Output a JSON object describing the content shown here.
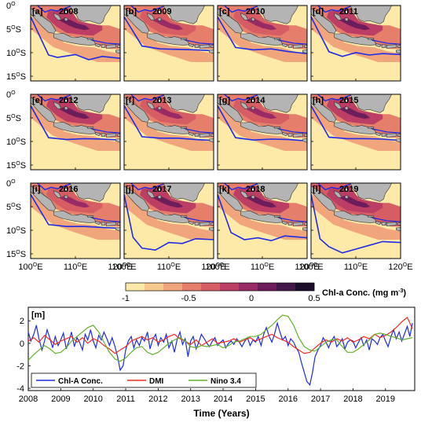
{
  "maps": {
    "y_ticks": [
      "0",
      "5",
      "10",
      "15"
    ],
    "lat_suffix": "S",
    "x_ticks": [
      "100",
      "110",
      "120"
    ],
    "lon_suffix": "E",
    "deg": "O",
    "panels": [
      {
        "label": "[a]",
        "year": "2008"
      },
      {
        "label": "[b]",
        "year": "2009"
      },
      {
        "label": "[c]",
        "year": "2010"
      },
      {
        "label": "[d]",
        "year": "2011"
      },
      {
        "label": "[e]",
        "year": "2012"
      },
      {
        "label": "[f]",
        "year": "2013"
      },
      {
        "label": "[g]",
        "year": "2014"
      },
      {
        "label": "[h]",
        "year": "2015"
      },
      {
        "label": "[i]",
        "year": "2016"
      },
      {
        "label": "[j]",
        "year": "2017"
      },
      {
        "label": "[k]",
        "year": "2018"
      },
      {
        "label": "[l]",
        "year": "2019"
      }
    ],
    "colors": {
      "land": "#b4b4b4",
      "contour": "#1f2be6",
      "coast": "#333333"
    }
  },
  "colorbar": {
    "title": "Chl-a Conc. (mg m",
    "title_sup": "-3",
    "title_end": ")",
    "ticks": [
      "-1",
      "-0.5",
      "0",
      "0.5"
    ],
    "range": [
      -1,
      0.5
    ],
    "colors": [
      "#fdeaa8",
      "#f7c98c",
      "#f0a57c",
      "#e57f6b",
      "#d65d63",
      "#bd3e64",
      "#982a66",
      "#6d1d5c",
      "#431749",
      "#1c0d2a"
    ]
  },
  "chart_data": {
    "type": "line",
    "panel_label": "[m]",
    "xlabel": "Time (Years)",
    "ylabel": "",
    "xlim": [
      2008,
      2019.9
    ],
    "ylim": [
      -4.2,
      3.2
    ],
    "x_ticks": [
      2008,
      2009,
      2010,
      2011,
      2012,
      2013,
      2014,
      2015,
      2016,
      2017,
      2018,
      2019
    ],
    "y_ticks": [
      -4,
      -2,
      0,
      2
    ],
    "grid": false,
    "legend_position": "bottom-left",
    "series": [
      {
        "name": "Chl-A Conc.",
        "color": "#1f2be6",
        "x": [
          2008.0,
          2008.08,
          2008.17,
          2008.25,
          2008.33,
          2008.42,
          2008.5,
          2008.58,
          2008.67,
          2008.75,
          2008.83,
          2008.92,
          2009.0,
          2009.08,
          2009.17,
          2009.25,
          2009.33,
          2009.42,
          2009.5,
          2009.58,
          2009.67,
          2009.75,
          2009.83,
          2009.92,
          2010.0,
          2010.08,
          2010.17,
          2010.25,
          2010.33,
          2010.42,
          2010.5,
          2010.58,
          2010.67,
          2010.75,
          2010.83,
          2010.92,
          2011.0,
          2011.08,
          2011.17,
          2011.25,
          2011.33,
          2011.42,
          2011.5,
          2011.58,
          2011.67,
          2011.75,
          2011.83,
          2011.92,
          2012.0,
          2012.08,
          2012.17,
          2012.25,
          2012.33,
          2012.42,
          2012.5,
          2012.58,
          2012.67,
          2012.75,
          2012.83,
          2012.92,
          2013.0,
          2013.08,
          2013.17,
          2013.25,
          2013.33,
          2013.42,
          2013.5,
          2013.58,
          2013.67,
          2013.75,
          2013.83,
          2013.92,
          2014.0,
          2014.08,
          2014.17,
          2014.25,
          2014.33,
          2014.42,
          2014.5,
          2014.58,
          2014.67,
          2014.75,
          2014.83,
          2014.92,
          2015.0,
          2015.08,
          2015.17,
          2015.25,
          2015.33,
          2015.42,
          2015.5,
          2015.58,
          2015.67,
          2015.75,
          2015.83,
          2015.92,
          2016.0,
          2016.08,
          2016.17,
          2016.25,
          2016.33,
          2016.42,
          2016.5,
          2016.58,
          2016.67,
          2016.75,
          2016.83,
          2016.92,
          2017.0,
          2017.08,
          2017.17,
          2017.25,
          2017.33,
          2017.42,
          2017.5,
          2017.58,
          2017.67,
          2017.75,
          2017.83,
          2017.92,
          2018.0,
          2018.08,
          2018.17,
          2018.25,
          2018.33,
          2018.42,
          2018.5,
          2018.58,
          2018.67,
          2018.75,
          2018.83,
          2018.92,
          2019.0,
          2019.08,
          2019.17,
          2019.25,
          2019.33,
          2019.42,
          2019.5,
          2019.58,
          2019.67,
          2019.75,
          2019.83
        ],
        "y": [
          1.0,
          0.2,
          0.8,
          1.6,
          0.4,
          -0.6,
          0.2,
          1.2,
          0.4,
          -0.4,
          0.6,
          -0.2,
          0.3,
          0.9,
          -0.5,
          0.2,
          1.0,
          -0.3,
          0.5,
          0.1,
          -0.6,
          0.8,
          0.3,
          1.2,
          0.2,
          -0.4,
          0.7,
          0.3,
          1.0,
          0.4,
          -0.2,
          0.5,
          -0.3,
          -1.2,
          -2.4,
          -2.0,
          -0.6,
          0.2,
          0.6,
          -0.4,
          0.3,
          -0.2,
          0.5,
          0.2,
          1.0,
          -0.5,
          0.3,
          0.8,
          -0.2,
          0.5,
          0.1,
          0.8,
          -0.4,
          0.2,
          -0.8,
          0.3,
          1.0,
          -0.1,
          0.4,
          -1.2,
          0.2,
          0.6,
          -0.5,
          0.1,
          0.8,
          0.4,
          0.0,
          -0.3,
          0.2,
          0.5,
          -0.2,
          0.1,
          0.3,
          -0.4,
          0.0,
          0.2,
          -0.1,
          0.4,
          0.1,
          -0.3,
          0.2,
          0.5,
          -0.2,
          0.3,
          0.1,
          0.6,
          -0.2,
          0.8,
          1.4,
          0.6,
          0.1,
          0.8,
          1.8,
          1.0,
          0.3,
          0.6,
          -0.2,
          0.4,
          0.1,
          -0.4,
          -0.8,
          -1.8,
          -2.6,
          -3.4,
          -3.7,
          -2.6,
          -1.2,
          -0.6,
          -0.2,
          0.5,
          0.1,
          -0.4,
          0.2,
          0.6,
          -0.3,
          0.0,
          0.4,
          -0.5,
          0.1,
          0.3,
          0.2,
          -0.4,
          0.1,
          0.5,
          -0.2,
          0.3,
          -0.6,
          0.4,
          0.2,
          -0.1,
          0.5,
          0.8,
          0.2,
          -0.3,
          0.6,
          1.2,
          0.4,
          1.0,
          0.2,
          0.8,
          1.5,
          0.6,
          1.8
        ]
      },
      {
        "name": "DMI",
        "color": "#f02a22",
        "x": [
          2008.0,
          2008.17,
          2008.33,
          2008.5,
          2008.67,
          2008.83,
          2009.0,
          2009.17,
          2009.33,
          2009.5,
          2009.67,
          2009.83,
          2010.0,
          2010.17,
          2010.33,
          2010.5,
          2010.67,
          2010.83,
          2011.0,
          2011.17,
          2011.33,
          2011.5,
          2011.67,
          2011.83,
          2012.0,
          2012.17,
          2012.33,
          2012.5,
          2012.67,
          2012.83,
          2013.0,
          2013.17,
          2013.33,
          2013.5,
          2013.67,
          2013.83,
          2014.0,
          2014.17,
          2014.33,
          2014.5,
          2014.67,
          2014.83,
          2015.0,
          2015.17,
          2015.33,
          2015.5,
          2015.67,
          2015.83,
          2016.0,
          2016.17,
          2016.33,
          2016.5,
          2016.67,
          2016.83,
          2017.0,
          2017.17,
          2017.33,
          2017.5,
          2017.67,
          2017.83,
          2018.0,
          2018.17,
          2018.33,
          2018.5,
          2018.67,
          2018.83,
          2019.0,
          2019.17,
          2019.33,
          2019.5,
          2019.67,
          2019.83
        ],
        "y": [
          0.2,
          0.5,
          0.1,
          0.7,
          0.3,
          -0.1,
          0.2,
          0.4,
          0.6,
          0.1,
          0.5,
          0.0,
          0.4,
          0.2,
          -0.2,
          -0.5,
          -0.9,
          -0.6,
          -0.3,
          0.2,
          0.4,
          0.6,
          0.3,
          0.5,
          0.1,
          0.3,
          0.6,
          0.8,
          0.4,
          0.2,
          -0.1,
          0.3,
          -0.2,
          0.1,
          0.4,
          0.0,
          0.1,
          0.2,
          0.4,
          0.1,
          0.3,
          0.5,
          0.2,
          0.4,
          0.6,
          0.8,
          0.5,
          0.3,
          0.1,
          -0.3,
          -0.6,
          -0.9,
          -0.8,
          -0.4,
          0.0,
          0.3,
          0.1,
          0.4,
          0.2,
          0.5,
          0.1,
          0.3,
          0.6,
          0.4,
          0.8,
          0.5,
          0.7,
          1.0,
          1.4,
          1.9,
          2.3,
          1.3
        ]
      },
      {
        "name": "Nino 3.4",
        "color": "#62b22a",
        "x": [
          2008.0,
          2008.17,
          2008.33,
          2008.5,
          2008.67,
          2008.83,
          2009.0,
          2009.17,
          2009.33,
          2009.5,
          2009.67,
          2009.83,
          2010.0,
          2010.17,
          2010.33,
          2010.5,
          2010.67,
          2010.83,
          2011.0,
          2011.17,
          2011.33,
          2011.5,
          2011.67,
          2011.83,
          2012.0,
          2012.17,
          2012.33,
          2012.5,
          2012.67,
          2012.83,
          2013.0,
          2013.17,
          2013.33,
          2013.5,
          2013.67,
          2013.83,
          2014.0,
          2014.17,
          2014.33,
          2014.5,
          2014.67,
          2014.83,
          2015.0,
          2015.17,
          2015.33,
          2015.5,
          2015.67,
          2015.83,
          2016.0,
          2016.17,
          2016.33,
          2016.5,
          2016.67,
          2016.83,
          2017.0,
          2017.17,
          2017.33,
          2017.5,
          2017.67,
          2017.83,
          2018.0,
          2018.17,
          2018.33,
          2018.5,
          2018.67,
          2018.83,
          2019.0,
          2019.17,
          2019.33,
          2019.5,
          2019.67,
          2019.83
        ],
        "y": [
          -1.5,
          -1.0,
          -0.6,
          -0.2,
          -0.5,
          -0.9,
          -0.8,
          -0.4,
          0.2,
          0.6,
          1.0,
          1.4,
          1.6,
          1.0,
          0.1,
          -0.8,
          -1.4,
          -1.6,
          -1.3,
          -0.8,
          -0.4,
          -0.3,
          -0.8,
          -1.0,
          -0.8,
          -0.4,
          0.0,
          0.3,
          0.5,
          0.2,
          -0.3,
          -0.4,
          -0.2,
          -0.3,
          -0.2,
          -0.1,
          -0.4,
          -0.2,
          0.1,
          0.2,
          0.4,
          0.6,
          0.6,
          0.8,
          1.2,
          1.6,
          2.1,
          2.5,
          2.4,
          1.6,
          0.5,
          -0.3,
          -0.6,
          -0.7,
          -0.3,
          0.1,
          0.3,
          0.3,
          -0.3,
          -0.8,
          -0.8,
          -0.5,
          -0.1,
          0.3,
          0.8,
          0.9,
          0.8,
          0.6,
          0.5,
          0.3,
          0.4,
          0.5
        ]
      }
    ]
  }
}
